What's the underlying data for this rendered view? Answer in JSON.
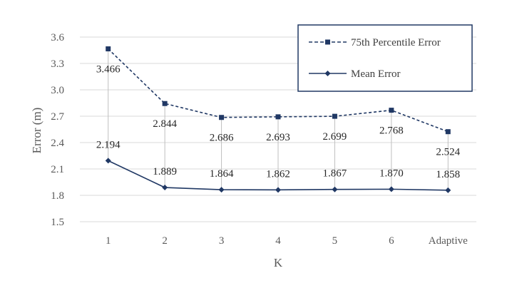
{
  "chart_data": {
    "type": "line",
    "title": "",
    "xlabel": "K",
    "ylabel": "Error (m)",
    "categories": [
      "1",
      "2",
      "3",
      "4",
      "5",
      "6",
      "Adaptive"
    ],
    "ylim": [
      1.5,
      3.6
    ],
    "yticks": [
      "1.5",
      "1.8",
      "2.1",
      "2.4",
      "2.7",
      "3.0",
      "3.3",
      "3.6"
    ],
    "grid": true,
    "legend_position": "top-right",
    "series": [
      {
        "name": "75th Percentile Error",
        "values": [
          3.466,
          2.844,
          2.686,
          2.693,
          2.699,
          2.768,
          2.524
        ],
        "labels": [
          "3.466",
          "2.844",
          "2.686",
          "2.693",
          "2.699",
          "2.768",
          "2.524"
        ],
        "line_style": "dashed",
        "marker": "square",
        "color": "#203864"
      },
      {
        "name": "Mean Error",
        "values": [
          2.194,
          1.889,
          1.864,
          1.862,
          1.867,
          1.87,
          1.858
        ],
        "labels": [
          "2.194",
          "1.889",
          "1.864",
          "1.862",
          "1.867",
          "1.870",
          "1.858"
        ],
        "line_style": "solid",
        "marker": "diamond",
        "color": "#203864"
      }
    ],
    "drop_lines_color": "#bfbfbf",
    "gridline_color": "#d9d9d9"
  }
}
